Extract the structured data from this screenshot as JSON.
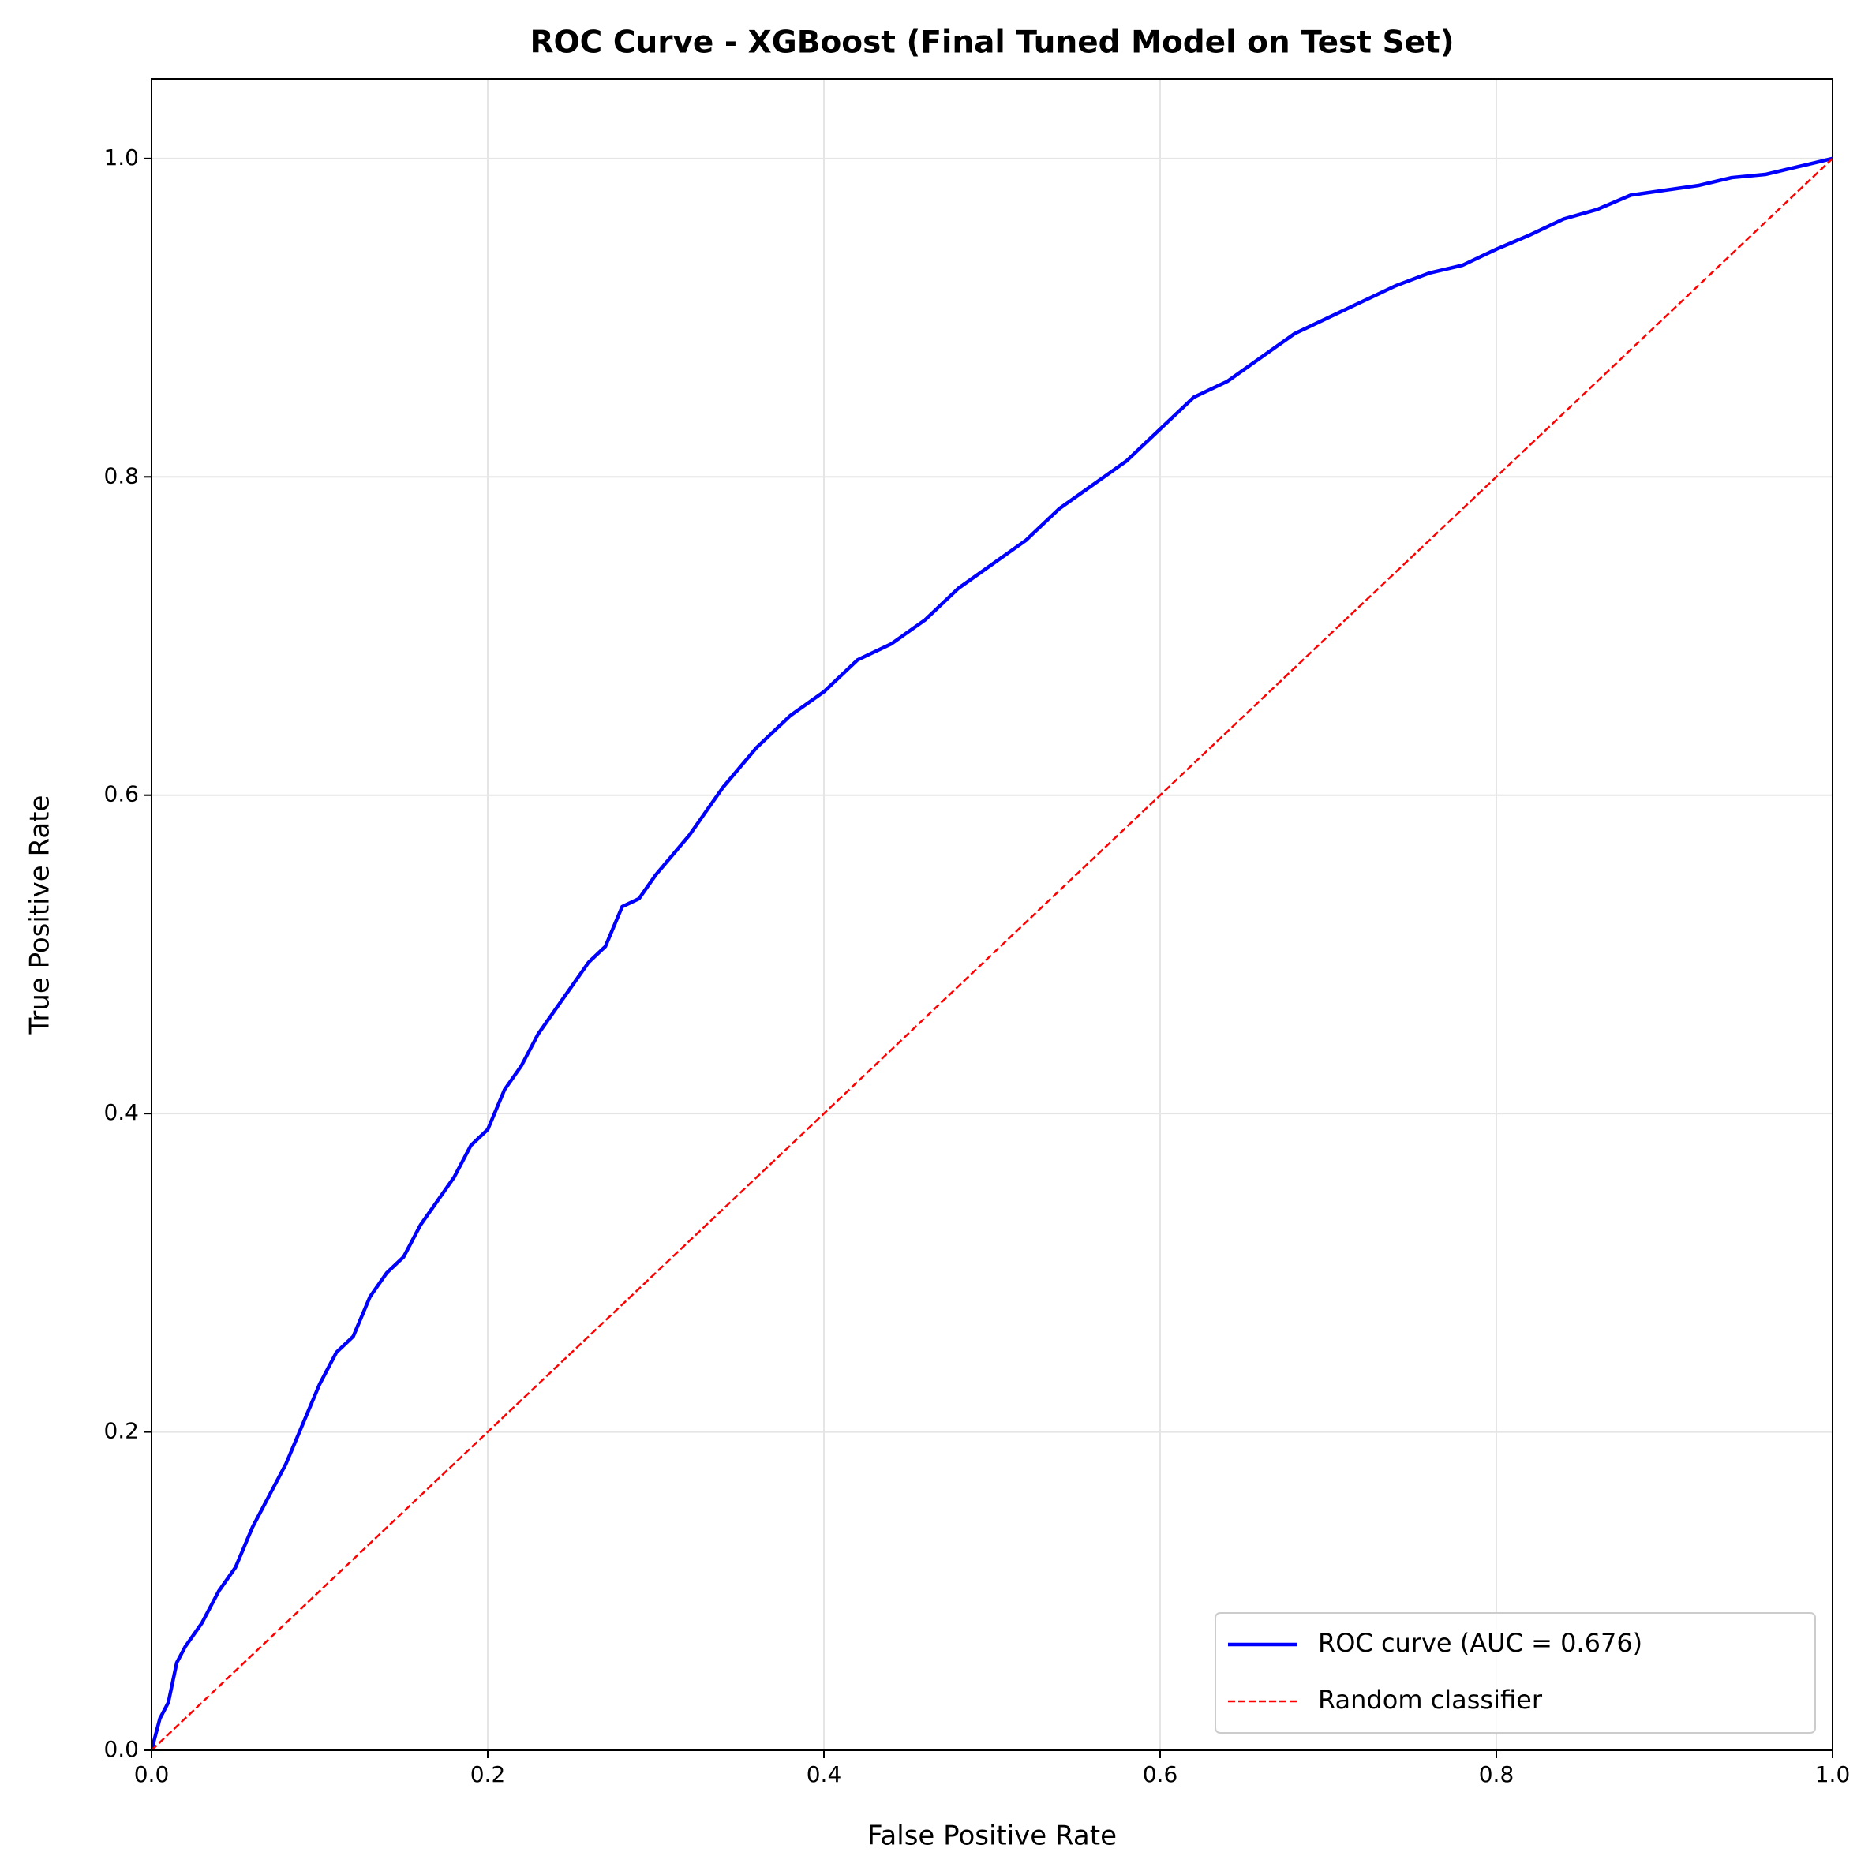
{
  "chart_data": {
    "type": "line",
    "title": "ROC Curve - XGBoost (Final Tuned Model on Test Set)",
    "xlabel": "False Positive Rate",
    "ylabel": "True Positive Rate",
    "xlim": [
      0,
      1
    ],
    "ylim": [
      0,
      1.05
    ],
    "xticks": [
      {
        "value": 0,
        "label": "0.0"
      },
      0.2,
      0.4,
      0.6,
      0.8,
      {
        "value": 1,
        "label": "1.0"
      }
    ],
    "yticks": [
      {
        "value": 0,
        "label": "0.0"
      },
      0.2,
      0.4,
      0.6,
      0.8,
      {
        "value": 1,
        "label": "1.0"
      }
    ],
    "grid": true,
    "legend": "lower right",
    "series": [
      {
        "name": "ROC curve (AUC = 0.676)",
        "color": "#0000ff",
        "linestyle": "solid",
        "x": [
          0,
          0.005,
          0.01,
          0.015,
          0.02,
          0.03,
          0.04,
          0.05,
          0.06,
          0.07,
          0.08,
          0.09,
          0.1,
          0.11,
          0.12,
          0.13,
          0.14,
          0.15,
          0.16,
          0.17,
          0.18,
          0.19,
          0.2,
          0.21,
          0.22,
          0.23,
          0.24,
          0.25,
          0.26,
          0.27,
          0.28,
          0.29,
          0.3,
          0.32,
          0.34,
          0.36,
          0.38,
          0.4,
          0.42,
          0.44,
          0.46,
          0.48,
          0.5,
          0.52,
          0.54,
          0.56,
          0.58,
          0.6,
          0.62,
          0.64,
          0.66,
          0.68,
          0.7,
          0.72,
          0.74,
          0.76,
          0.78,
          0.8,
          0.82,
          0.84,
          0.86,
          0.88,
          0.9,
          0.92,
          0.94,
          0.96,
          0.98,
          1
        ],
        "values": [
          0,
          0.02,
          0.03,
          0.055,
          0.065,
          0.08,
          0.1,
          0.115,
          0.14,
          0.16,
          0.18,
          0.205,
          0.23,
          0.25,
          0.26,
          0.285,
          0.3,
          0.31,
          0.33,
          0.345,
          0.36,
          0.38,
          0.39,
          0.415,
          0.43,
          0.45,
          0.465,
          0.48,
          0.495,
          0.505,
          0.53,
          0.535,
          0.55,
          0.575,
          0.605,
          0.63,
          0.65,
          0.665,
          0.685,
          0.695,
          0.71,
          0.73,
          0.745,
          0.76,
          0.78,
          0.795,
          0.81,
          0.83,
          0.85,
          0.86,
          0.875,
          0.89,
          0.9,
          0.91,
          0.92,
          0.928,
          0.933,
          0.943,
          0.952,
          0.962,
          0.968,
          0.977,
          0.98,
          0.983,
          0.988,
          0.99,
          0.995,
          1
        ]
      },
      {
        "name": "Random classifier",
        "color": "#ff0000",
        "linestyle": "dashed",
        "x": [
          0,
          1
        ],
        "values": [
          0,
          1
        ]
      }
    ]
  }
}
